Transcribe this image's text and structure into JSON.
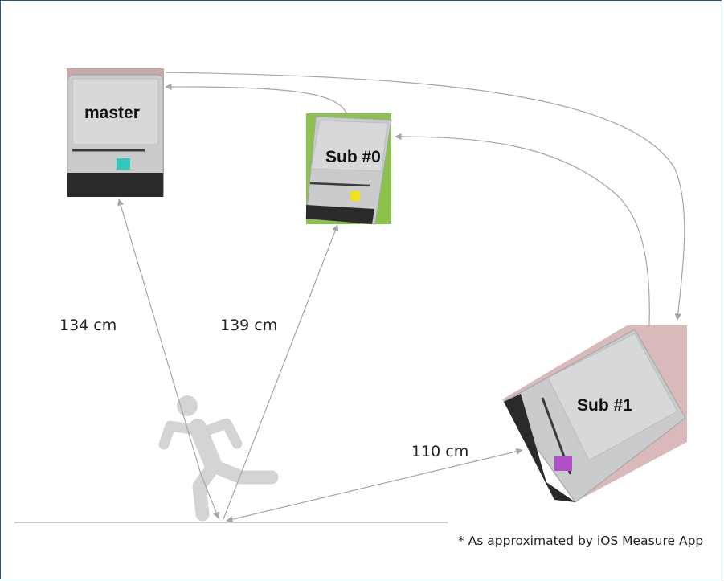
{
  "devices": {
    "master": {
      "label": "master",
      "sticker_color": "#2fc9c0"
    },
    "sub0": {
      "label": "Sub #0",
      "sticker_color": "#f2e21a"
    },
    "sub1": {
      "label": "Sub #1",
      "sticker_color": "#b04fc8"
    }
  },
  "distances": {
    "master": "134 cm",
    "sub0": "139 cm",
    "sub1": "110 cm"
  },
  "footnote": "* As approximated by iOS Measure App",
  "colors": {
    "arrow": "#a6a6a6",
    "person": "#d4d4d4",
    "device_body": "#c9cbcc",
    "device_dark": "#2a2a2a"
  }
}
